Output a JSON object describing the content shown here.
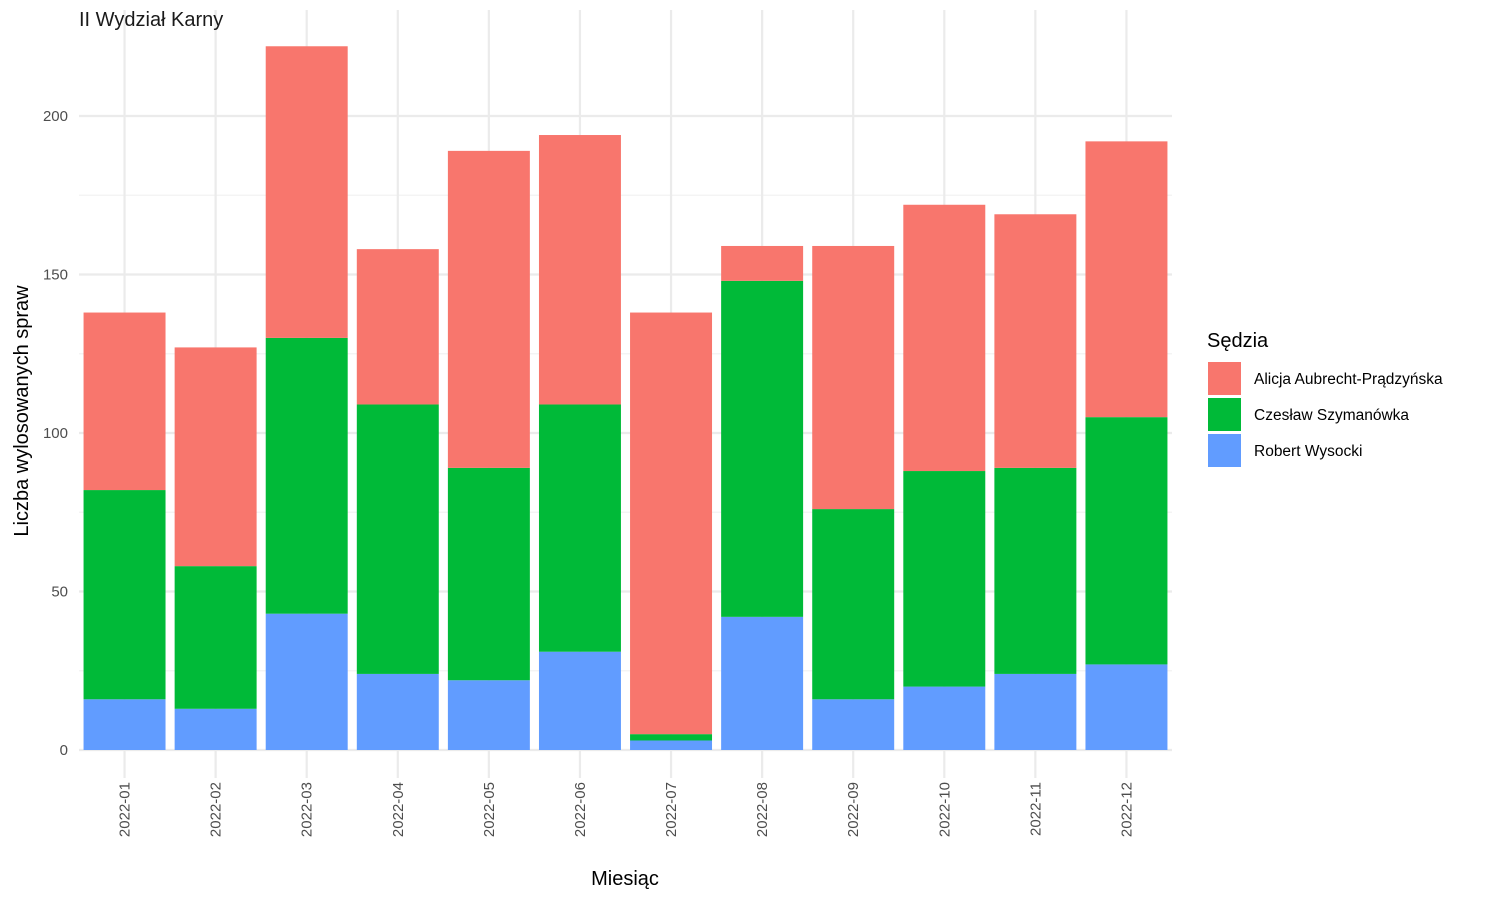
{
  "chart_data": {
    "type": "bar",
    "stacked": true,
    "title": "II Wydział Karny",
    "xlabel": "Miesiąc",
    "ylabel": "Liczba wylosowanych spraw",
    "ylim": [
      0,
      224
    ],
    "yticks": [
      0,
      50,
      100,
      150,
      200
    ],
    "grid": true,
    "legend_title": "Sędzia",
    "legend_position": "right",
    "categories": [
      "2022-01",
      "2022-02",
      "2022-03",
      "2022-04",
      "2022-05",
      "2022-06",
      "2022-07",
      "2022-08",
      "2022-09",
      "2022-10",
      "2022-11",
      "2022-12"
    ],
    "series": [
      {
        "name": "Alicja Aubrecht-Prądzyńska",
        "color": "#F8766D",
        "values": [
          56,
          69,
          92,
          49,
          100,
          85,
          133,
          11,
          83,
          84,
          80,
          87
        ]
      },
      {
        "name": "Czesław Szymanówka",
        "color": "#00BA38",
        "values": [
          66,
          45,
          87,
          85,
          67,
          78,
          2,
          106,
          60,
          68,
          65,
          78
        ]
      },
      {
        "name": "Robert Wysocki",
        "color": "#619CFF",
        "values": [
          16,
          13,
          43,
          24,
          22,
          31,
          3,
          42,
          16,
          20,
          24,
          27
        ]
      }
    ]
  }
}
